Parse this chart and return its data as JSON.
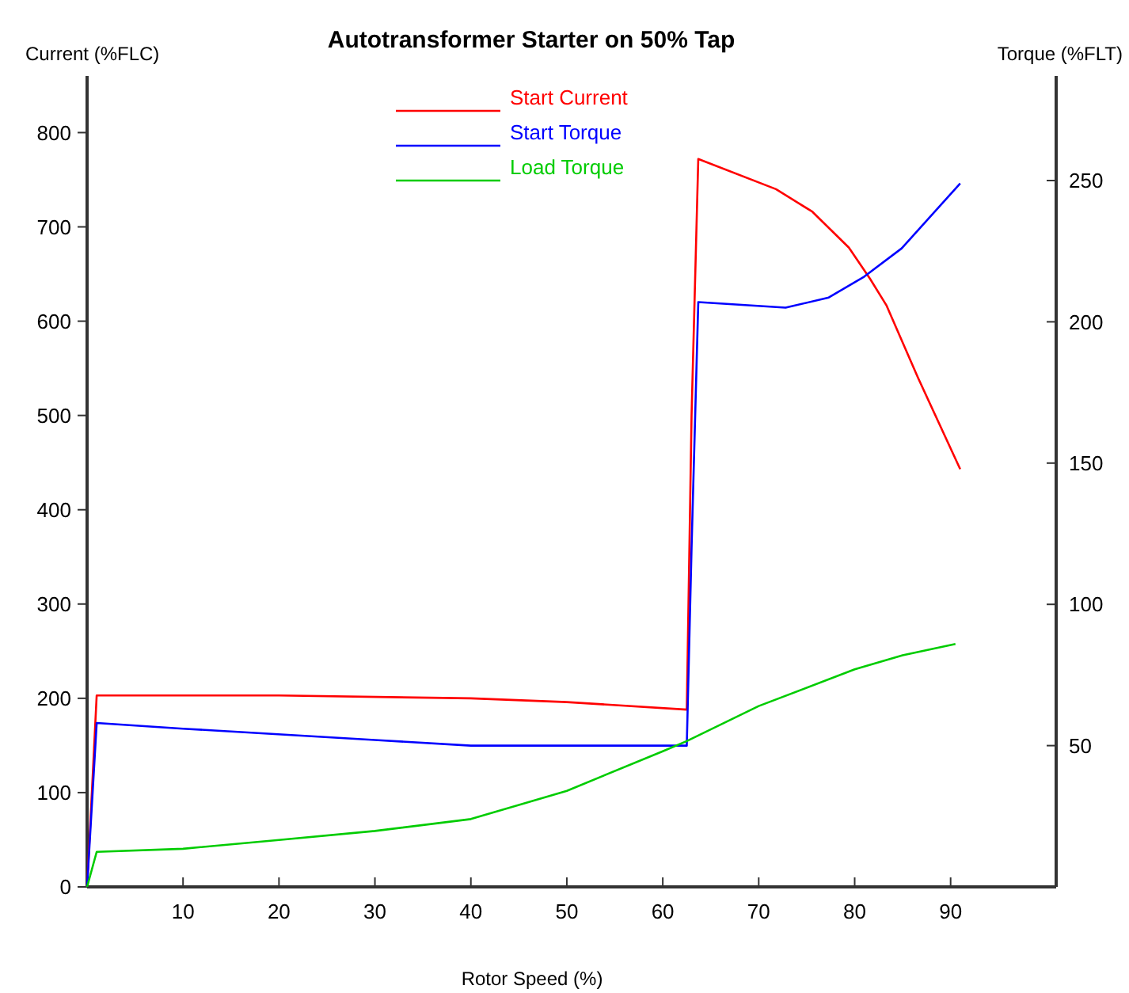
{
  "chart_data": {
    "type": "line",
    "title": "Autotransformer Starter on 50% Tap",
    "xlabel": "Rotor Speed (%)",
    "ylabel": "Current (%FLC)",
    "y2label": "Torque (%FLT)",
    "xlim": [
      0,
      101
    ],
    "xticks": [
      10,
      20,
      30,
      40,
      50,
      60,
      70,
      80,
      90
    ],
    "ylim": [
      0,
      860
    ],
    "yticks": [
      0,
      100,
      200,
      300,
      400,
      500,
      600,
      700,
      800
    ],
    "y2lim": [
      0,
      287
    ],
    "y2ticks": [
      50,
      100,
      150,
      200,
      250
    ],
    "grid": false,
    "legend": "top",
    "marker": "none",
    "line_style": "solid",
    "series": [
      {
        "name": "Start Current",
        "color": "#ff0000",
        "x": [
          0,
          0.5,
          1,
          20,
          40,
          50,
          62.5,
          63,
          63.7,
          71.8,
          75.6,
          79.4,
          81.6,
          83.3,
          86.6,
          91
        ],
        "values": [
          0,
          100,
          203,
          203,
          200,
          196,
          188,
          500,
          772,
          740,
          716,
          678,
          645,
          617,
          540,
          443
        ]
      },
      {
        "name": "Start Torque",
        "color": "#0000ff",
        "axis": "y2",
        "x": [
          0,
          1,
          10,
          30,
          40,
          62.5,
          63,
          63.7,
          72.8,
          77.3,
          81,
          84.9,
          91
        ],
        "values": [
          0,
          58,
          56,
          52,
          50,
          50,
          120,
          207,
          205,
          208.6,
          216,
          226,
          249
        ]
      },
      {
        "name": "Load Torque",
        "color": "#00cc00",
        "axis": "y2",
        "x": [
          0,
          1,
          10,
          20,
          30,
          40,
          50,
          60,
          62.5,
          70,
          80,
          85,
          90.5
        ],
        "values": [
          0,
          12.4,
          13.5,
          16.6,
          19.8,
          24,
          34,
          48,
          51.6,
          64,
          77,
          82,
          86
        ]
      }
    ]
  }
}
